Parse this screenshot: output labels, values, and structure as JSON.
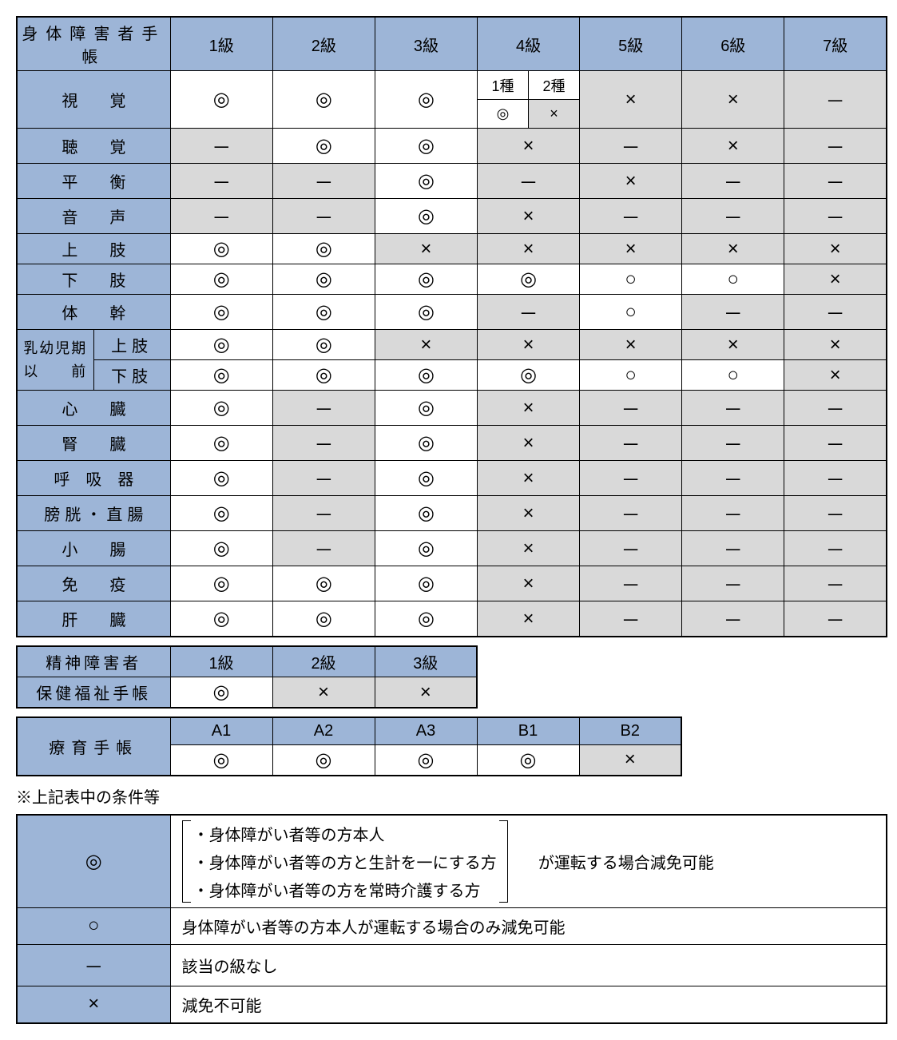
{
  "colors": {
    "header_bg": "#9DB5D7",
    "gray_bg": "#D9D9D9",
    "border": "#000000"
  },
  "symbols": {
    "double_circle": "◎",
    "circle": "○",
    "cross": "×",
    "dash": "－"
  },
  "table1": {
    "header": "身体障害者手帳",
    "grades": [
      "1級",
      "2級",
      "3級",
      "4級",
      "5級",
      "6級",
      "7級"
    ],
    "rows": [
      {
        "label": "視覚",
        "cells": [
          "◎",
          "◎",
          "◎",
          null,
          "×",
          "×",
          "－"
        ],
        "split4": {
          "headers": [
            "1種",
            "2種"
          ],
          "values": [
            "◎",
            "×"
          ],
          "cell_bg": [
            "wht",
            "gray"
          ]
        },
        "bg": [
          "wht",
          "wht",
          "wht",
          null,
          "gray",
          "gray",
          "gray"
        ]
      },
      {
        "label": "聴覚",
        "cells": [
          "－",
          "◎",
          "◎",
          "×",
          "－",
          "×",
          "－"
        ],
        "bg": [
          "gray",
          "wht",
          "wht",
          "gray",
          "gray",
          "gray",
          "gray"
        ]
      },
      {
        "label": "平衡",
        "cells": [
          "－",
          "－",
          "◎",
          "－",
          "×",
          "－",
          "－"
        ],
        "bg": [
          "gray",
          "gray",
          "wht",
          "gray",
          "gray",
          "gray",
          "gray"
        ]
      },
      {
        "label": "音声",
        "cells": [
          "－",
          "－",
          "◎",
          "×",
          "－",
          "－",
          "－"
        ],
        "bg": [
          "gray",
          "gray",
          "wht",
          "gray",
          "gray",
          "gray",
          "gray"
        ]
      },
      {
        "label": "上肢",
        "cells": [
          "◎",
          "◎",
          "×",
          "×",
          "×",
          "×",
          "×"
        ],
        "bg": [
          "wht",
          "wht",
          "gray",
          "gray",
          "gray",
          "gray",
          "gray"
        ]
      },
      {
        "label": "下肢",
        "cells": [
          "◎",
          "◎",
          "◎",
          "◎",
          "○",
          "○",
          "×"
        ],
        "bg": [
          "wht",
          "wht",
          "wht",
          "wht",
          "wht",
          "wht",
          "gray"
        ]
      },
      {
        "label": "体幹",
        "cells": [
          "◎",
          "◎",
          "◎",
          "－",
          "○",
          "－",
          "－"
        ],
        "bg": [
          "wht",
          "wht",
          "wht",
          "gray",
          "wht",
          "gray",
          "gray"
        ]
      },
      {
        "label": "上肢",
        "group": "乳幼児期以前",
        "cells": [
          "◎",
          "◎",
          "×",
          "×",
          "×",
          "×",
          "×"
        ],
        "bg": [
          "wht",
          "wht",
          "gray",
          "gray",
          "gray",
          "gray",
          "gray"
        ]
      },
      {
        "label": "下肢",
        "cells": [
          "◎",
          "◎",
          "◎",
          "◎",
          "○",
          "○",
          "×"
        ],
        "bg": [
          "wht",
          "wht",
          "wht",
          "wht",
          "wht",
          "wht",
          "gray"
        ]
      },
      {
        "label": "心臓",
        "cells": [
          "◎",
          "－",
          "◎",
          "×",
          "－",
          "－",
          "－"
        ],
        "bg": [
          "wht",
          "gray",
          "wht",
          "gray",
          "gray",
          "gray",
          "gray"
        ]
      },
      {
        "label": "腎臓",
        "cells": [
          "◎",
          "－",
          "◎",
          "×",
          "－",
          "－",
          "－"
        ],
        "bg": [
          "wht",
          "gray",
          "wht",
          "gray",
          "gray",
          "gray",
          "gray"
        ]
      },
      {
        "label": "呼吸器",
        "cells": [
          "◎",
          "－",
          "◎",
          "×",
          "－",
          "－",
          "－"
        ],
        "bg": [
          "wht",
          "gray",
          "wht",
          "gray",
          "gray",
          "gray",
          "gray"
        ]
      },
      {
        "label": "膀胱・直腸",
        "cells": [
          "◎",
          "－",
          "◎",
          "×",
          "－",
          "－",
          "－"
        ],
        "bg": [
          "wht",
          "gray",
          "wht",
          "gray",
          "gray",
          "gray",
          "gray"
        ]
      },
      {
        "label": "小腸",
        "cells": [
          "◎",
          "－",
          "◎",
          "×",
          "－",
          "－",
          "－"
        ],
        "bg": [
          "wht",
          "gray",
          "wht",
          "gray",
          "gray",
          "gray",
          "gray"
        ]
      },
      {
        "label": "免疫",
        "cells": [
          "◎",
          "◎",
          "◎",
          "×",
          "－",
          "－",
          "－"
        ],
        "bg": [
          "wht",
          "wht",
          "wht",
          "gray",
          "gray",
          "gray",
          "gray"
        ]
      },
      {
        "label": "肝臓",
        "cells": [
          "◎",
          "◎",
          "◎",
          "×",
          "－",
          "－",
          "－"
        ],
        "bg": [
          "wht",
          "wht",
          "wht",
          "gray",
          "gray",
          "gray",
          "gray"
        ]
      }
    ],
    "group_label": "乳幼児期以前"
  },
  "table2": {
    "header1": "精神障害者",
    "header2": "保健福祉手帳",
    "grades": [
      "1級",
      "2級",
      "3級"
    ],
    "values": [
      "◎",
      "×",
      "×"
    ],
    "bg": [
      "wht",
      "gray",
      "gray"
    ]
  },
  "table3": {
    "header": "療育手帳",
    "grades": [
      "A1",
      "A2",
      "A3",
      "B1",
      "B2"
    ],
    "values": [
      "◎",
      "◎",
      "◎",
      "◎",
      "×"
    ],
    "bg": [
      "wht",
      "wht",
      "wht",
      "wht",
      "gray"
    ]
  },
  "note": "※上記表中の条件等",
  "legend": {
    "rows": [
      {
        "symbol": "◎",
        "bracket_items": [
          "・身体障がい者等の方本人",
          "・身体障がい者等の方と生計を一にする方",
          "・身体障がい者等の方を常時介護する方"
        ],
        "suffix": "が運転する場合減免可能"
      },
      {
        "symbol": "○",
        "text": "身体障がい者等の方本人が運転する場合のみ減免可能"
      },
      {
        "symbol": "－",
        "text": "該当の級なし"
      },
      {
        "symbol": "×",
        "text": "減免不可能"
      }
    ]
  }
}
